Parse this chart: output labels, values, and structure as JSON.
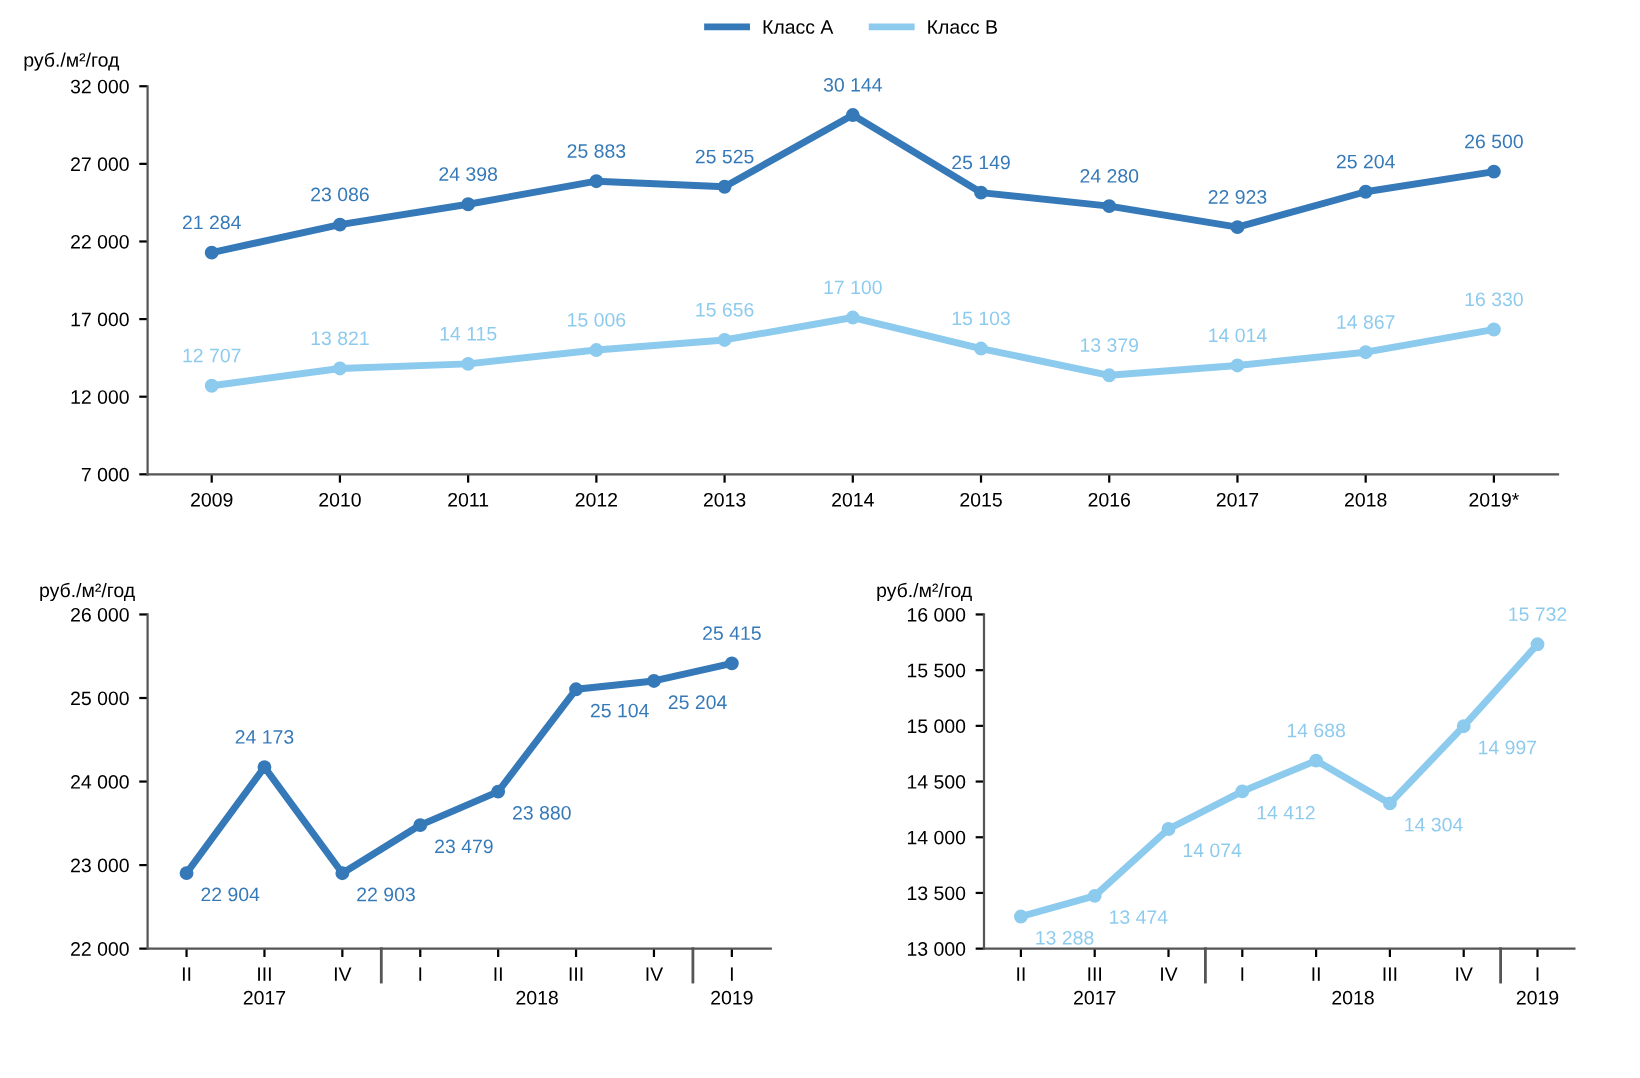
{
  "chart_data": [
    {
      "type": "line",
      "ylabel": "руб./м²/год",
      "categories": [
        "2009",
        "2010",
        "2011",
        "2012",
        "2013",
        "2014",
        "2015",
        "2016",
        "2017",
        "2018",
        "2019*"
      ],
      "series": [
        {
          "name": "Класс А",
          "color": "#3579b8",
          "values": [
            21284,
            23086,
            24398,
            25883,
            25525,
            30144,
            25149,
            24280,
            22923,
            25204,
            26500
          ],
          "value_labels": [
            "21 284",
            "23 086",
            "24 398",
            "25 883",
            "25 525",
            "30 144",
            "25 149",
            "24 280",
            "22 923",
            "25 204",
            "26 500"
          ]
        },
        {
          "name": "Класс В",
          "color": "#8ccaee",
          "values": [
            12707,
            13821,
            14115,
            15006,
            15656,
            17100,
            15103,
            13379,
            14014,
            14867,
            16330
          ],
          "value_labels": [
            "12 707",
            "13 821",
            "14 115",
            "15 006",
            "15 656",
            "17 100",
            "15 103",
            "13 379",
            "14 014",
            "14 867",
            "16 330"
          ]
        }
      ],
      "ylim": [
        7000,
        32000
      ],
      "yticks": [
        {
          "value": 7000,
          "label": "7 000"
        },
        {
          "value": 12000,
          "label": "12 000"
        },
        {
          "value": 17000,
          "label": "17 000"
        },
        {
          "value": 22000,
          "label": "22 000"
        },
        {
          "value": 27000,
          "label": "27 000"
        },
        {
          "value": 32000,
          "label": "32 000"
        }
      ],
      "legend": "top",
      "marker": "circle",
      "grid": false
    },
    {
      "type": "line",
      "ylabel": "руб./м²/год",
      "categories": [
        "II",
        "III",
        "IV",
        "I",
        "II",
        "III",
        "IV",
        "I"
      ],
      "series": [
        {
          "color": "#3579b8",
          "values": [
            22904,
            24173,
            22903,
            23479,
            23880,
            25104,
            25204,
            25415
          ],
          "value_labels": [
            "22 904",
            "24 173",
            "22 903",
            "23 479",
            "23 880",
            "25 104",
            "25 204",
            "25 415"
          ]
        }
      ],
      "ylim": [
        22000,
        26000
      ],
      "yticks": [
        {
          "value": 22000,
          "label": "22 000"
        },
        {
          "value": 23000,
          "label": "23 000"
        },
        {
          "value": 24000,
          "label": "24 000"
        },
        {
          "value": 25000,
          "label": "25 000"
        },
        {
          "value": 26000,
          "label": "26 000"
        }
      ],
      "annotations": [
        "2017",
        "2018",
        "2019"
      ],
      "marker": "circle",
      "grid": false
    },
    {
      "type": "line",
      "ylabel": "руб./м²/год",
      "categories": [
        "II",
        "III",
        "IV",
        "I",
        "II",
        "III",
        "IV",
        "I"
      ],
      "series": [
        {
          "color": "#8ccaee",
          "values": [
            13288,
            13474,
            14074,
            14412,
            14688,
            14304,
            14997,
            15732
          ],
          "value_labels": [
            "13 288",
            "13 474",
            "14 074",
            "14 412",
            "14 688",
            "14 304",
            "14 997",
            "15 732"
          ]
        }
      ],
      "ylim": [
        13000,
        16000
      ],
      "yticks": [
        {
          "value": 13000,
          "label": "13 000"
        },
        {
          "value": 13500,
          "label": "13 500"
        },
        {
          "value": 14000,
          "label": "14 000"
        },
        {
          "value": 14500,
          "label": "14 500"
        },
        {
          "value": 15000,
          "label": "15 000"
        },
        {
          "value": 15500,
          "label": "15 500"
        },
        {
          "value": 16000,
          "label": "16 000"
        }
      ],
      "annotations": [
        "2017",
        "2018",
        "2019"
      ],
      "marker": "circle",
      "grid": false
    }
  ]
}
